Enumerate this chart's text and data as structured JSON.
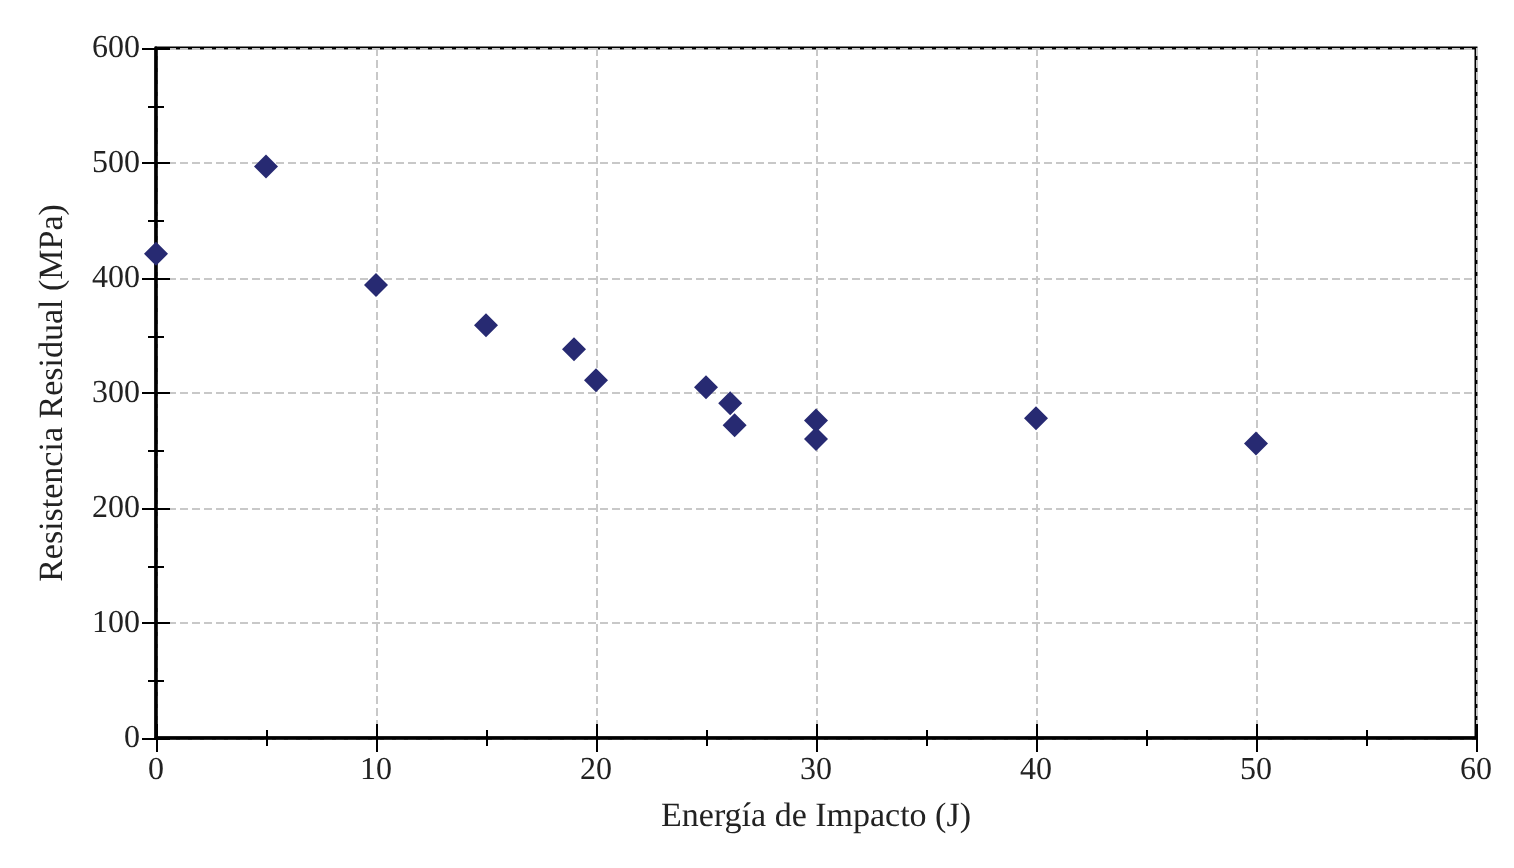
{
  "chart_data": {
    "type": "scatter",
    "xlabel": "Energía de Impacto (J)",
    "ylabel": "Resistencia Residual (MPa)",
    "x": [
      0,
      5,
      10,
      15,
      19,
      20,
      25,
      26.1,
      26.3,
      30,
      30,
      40,
      50
    ],
    "values": [
      421,
      497,
      394,
      359,
      338,
      311,
      305,
      291,
      272,
      276,
      260,
      278,
      256
    ],
    "color": "#272a72",
    "marker": "diamond",
    "xlim": [
      0,
      60
    ],
    "xticks": [
      0,
      10,
      20,
      30,
      40,
      50,
      60
    ],
    "ylim": [
      0,
      600
    ],
    "yticks": [
      0,
      100,
      200,
      300,
      400,
      500,
      600
    ],
    "grid": true
  }
}
